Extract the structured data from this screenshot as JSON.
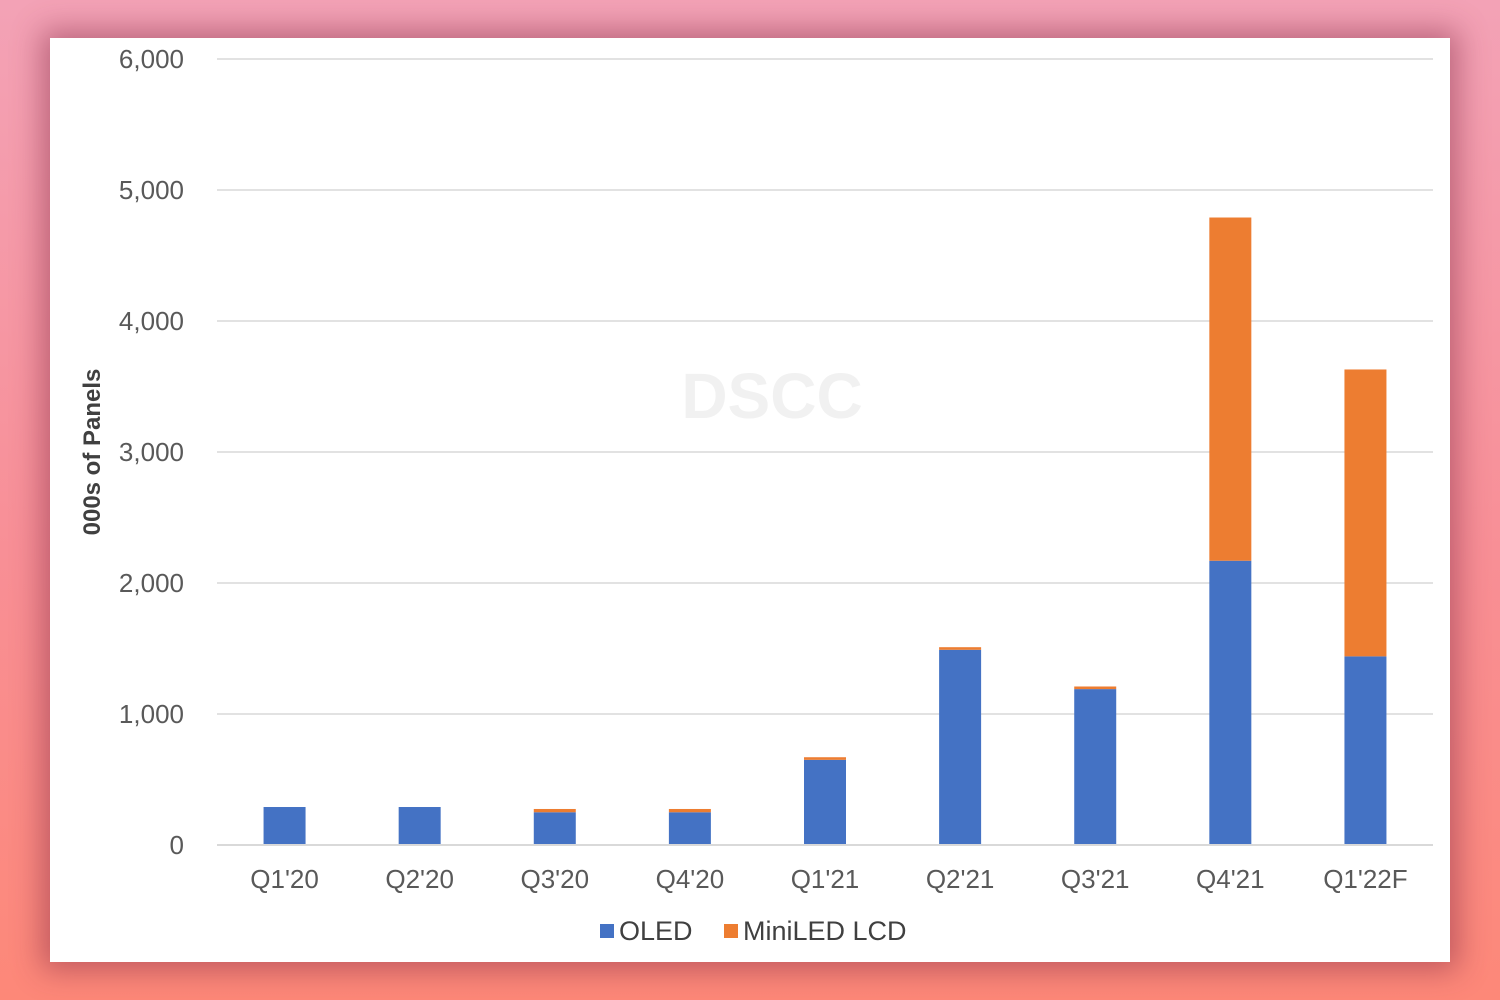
{
  "chart_data": {
    "type": "bar",
    "stacked": true,
    "categories": [
      "Q1'20",
      "Q2'20",
      "Q3'20",
      "Q4'20",
      "Q1'21",
      "Q2'21",
      "Q3'21",
      "Q4'21",
      "Q1'22F"
    ],
    "series": [
      {
        "name": "OLED",
        "color": "#4472c4",
        "values": [
          290,
          290,
          250,
          250,
          650,
          1490,
          1190,
          2170,
          1440
        ]
      },
      {
        "name": "MiniLED LCD",
        "color": "#ed7d31",
        "values": [
          0,
          0,
          25,
          25,
          20,
          20,
          20,
          2620,
          2190
        ]
      }
    ],
    "ylabel": "000s of Panels",
    "ylim": [
      0,
      6000
    ],
    "yticks": [
      0,
      1000,
      2000,
      3000,
      4000,
      5000,
      6000
    ],
    "ytick_labels": [
      "0",
      "1,000",
      "2,000",
      "3,000",
      "4,000",
      "5,000",
      "6,000"
    ],
    "grid": true,
    "legend": "bottom",
    "watermark": "DSCC"
  }
}
